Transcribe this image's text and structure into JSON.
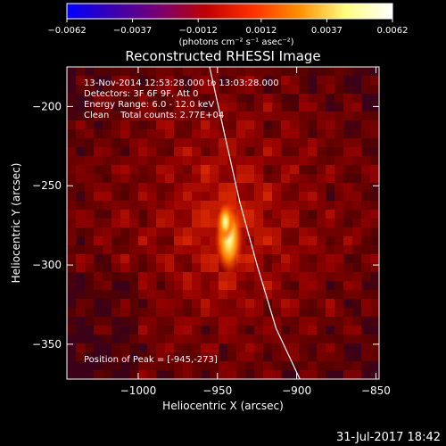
{
  "chart_data": {
    "type": "heatmap",
    "title": "Reconstructed RHESSI Image",
    "xlabel": "Heliocentric X (arcsec)",
    "ylabel": "Heliocentric Y (arcsec)",
    "xlim": [
      -1045,
      -848
    ],
    "ylim": [
      -372,
      -175
    ],
    "x_ticks": [
      {
        "value": -1000,
        "label": "−1000"
      },
      {
        "value": -950,
        "label": "−950"
      },
      {
        "value": -900,
        "label": "−900"
      },
      {
        "value": -850,
        "label": "−850"
      }
    ],
    "y_ticks": [
      {
        "value": -200,
        "label": "−200"
      },
      {
        "value": -250,
        "label": "−250"
      },
      {
        "value": -300,
        "label": "−300"
      },
      {
        "value": -350,
        "label": "−350"
      }
    ],
    "colorbar": {
      "range": [
        -0.0062,
        0.0062
      ],
      "ticks": [
        {
          "value": -0.0062,
          "label": "−0.0062"
        },
        {
          "value": -0.0037,
          "label": "−0.0037"
        },
        {
          "value": -0.0012,
          "label": "−0.0012"
        },
        {
          "value": 0.0012,
          "label": "0.0012"
        },
        {
          "value": 0.0037,
          "label": "0.0037"
        },
        {
          "value": 0.0062,
          "label": "0.0062"
        }
      ],
      "unit_label": "(photons cm⁻² s⁻¹ asec⁻²)",
      "colors": [
        "#0000ff",
        "#3a00b0",
        "#7a0070",
        "#c00000",
        "#ff3000",
        "#ff9000",
        "#ffff80",
        "#ffffff"
      ]
    },
    "info_lines": [
      "13-Nov-2014 12:53:28.000 to 13:03:28.000",
      "Detectors: 3F 6F 9F, Att 0",
      "Energy Range: 6.0 - 12.0 keV",
      "Clean    Total counts: 2.77E+04"
    ],
    "peak_label": "Position of Peak = [-945,-273]",
    "peak": {
      "x": -945,
      "y": -273
    },
    "limb_curve": [
      [
        -955,
        -175
      ],
      [
        -936,
        -260
      ],
      [
        -925,
        -300
      ],
      [
        -913,
        -340
      ],
      [
        -898,
        -372
      ]
    ],
    "timestamp": "31-Jul-2017 18:42"
  }
}
